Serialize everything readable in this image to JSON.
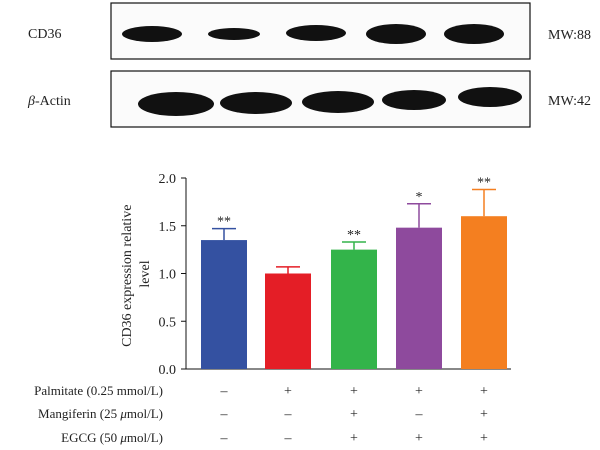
{
  "blot": {
    "panels": [
      {
        "label": "CD36",
        "mw": "MW:88"
      },
      {
        "label_greek": "β",
        "label_rest": "-Actin",
        "mw": "MW:42"
      }
    ]
  },
  "chart_data": {
    "type": "bar",
    "ylabel_line1": "CD36 expression relative",
    "ylabel_line2": "level",
    "ylim": [
      0,
      2.0
    ],
    "yticks": [
      "0.0",
      "0.5",
      "1.0",
      "1.5",
      "2.0"
    ],
    "ytick_values": [
      0.0,
      0.5,
      1.0,
      1.5,
      2.0
    ],
    "bars": [
      {
        "value": 1.35,
        "error": 0.12,
        "color": "#3451a1",
        "sig": "**"
      },
      {
        "value": 1.0,
        "error": 0.07,
        "color": "#e41e26",
        "sig": ""
      },
      {
        "value": 1.25,
        "error": 0.08,
        "color": "#33b44a",
        "sig": "**"
      },
      {
        "value": 1.48,
        "error": 0.25,
        "color": "#8e4a9d",
        "sig": "*"
      },
      {
        "value": 1.6,
        "error": 0.28,
        "color": "#f47f20",
        "sig": "**"
      }
    ],
    "conditions": [
      {
        "label": "Palmitate (0.25 mmol/L)",
        "marks": [
          "–",
          "+",
          "+",
          "+",
          "+"
        ]
      },
      {
        "label_pre": "Mangiferin (25 ",
        "label_greek": "μ",
        "label_post": "mol/L)",
        "marks": [
          "–",
          "–",
          "+",
          "–",
          "+"
        ]
      },
      {
        "label_pre": "EGCG (50 ",
        "label_greek": "μ",
        "label_post": "mol/L)",
        "marks": [
          "–",
          "–",
          "+",
          "+",
          "+"
        ]
      }
    ]
  }
}
